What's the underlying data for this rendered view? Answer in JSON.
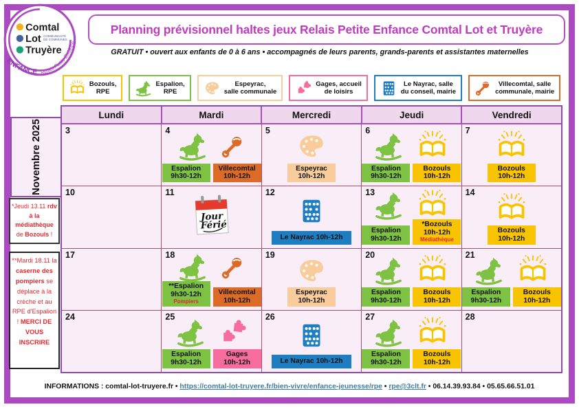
{
  "logo": {
    "line1": "Comtal",
    "line2": "Lot",
    "line3": "Truyère",
    "sub1": "COMMUNAUTÉ",
    "sub2": "DE COMMUNES",
    "arc_bottom": "ENFANCE ⋯",
    "arc_right": "Relais Petite Enfance"
  },
  "header": {
    "title": "Planning prévisionnel haltes jeux Relais Petite Enfance Comtal Lot et Truyère",
    "subtitle": "GRATUIT •  ouvert aux enfants de 0 à 6 ans •  accompagnés de leurs parents, grands-parents et assistantes maternelles"
  },
  "colors": {
    "green": "#7DC242",
    "yellow": "#F8C301",
    "peach": "#F8CC9B",
    "orange": "#DD6B28",
    "pink": "#F76C9F",
    "blue": "#1F7EC2",
    "frame_purple": "#AC4BC1",
    "title_magenta": "#BE3DBE",
    "note_red": "#E8262B",
    "link_teal": "#3D7E9E",
    "cell_bg": "#F9EDF7",
    "header_bg": "#EFD8ED"
  },
  "legend": [
    {
      "icon": "open-book-icon",
      "color_key": "yellow",
      "lines": [
        "Bozouls,",
        "RPE"
      ]
    },
    {
      "icon": "rocking-horse-icon",
      "color_key": "green",
      "lines": [
        "Espalion,",
        "RPE"
      ]
    },
    {
      "icon": "palette-icon",
      "color_key": "peach",
      "lines": [
        "Espeyrac,",
        "salle communale"
      ]
    },
    {
      "icon": "puzzle-icon",
      "color_key": "pink",
      "lines": [
        "Gages, accueil",
        "de loisirs"
      ]
    },
    {
      "icon": "abacus-icon",
      "color_key": "blue",
      "lines": [
        "Le Nayrac, salle",
        "du conseil, mairie"
      ]
    },
    {
      "icon": "rattle-icon",
      "color_key": "orange",
      "lines": [
        "Villecomtal, salle",
        "communale, mairie"
      ]
    }
  ],
  "calendar": {
    "month_label": "Novembre 2025",
    "day_headers": [
      "Lundi",
      "Mardi",
      "Mercredi",
      "Jeudi",
      "Vendredi"
    ],
    "weeks": [
      [
        {
          "day": "3",
          "events": []
        },
        {
          "day": "4",
          "events": [
            {
              "icon": "rocking-horse-icon",
              "title": "Espalion",
              "time": "9h30-12h",
              "color_key": "green"
            },
            {
              "icon": "rattle-icon",
              "title": "Villecomtal",
              "time": "10h-12h",
              "color_key": "orange"
            }
          ]
        },
        {
          "day": "5",
          "events": [
            {
              "icon": "palette-icon",
              "title": "Espeyrac",
              "time": "10h-12h",
              "color_key": "peach"
            }
          ]
        },
        {
          "day": "6",
          "events": [
            {
              "icon": "rocking-horse-icon",
              "title": "Espalion",
              "time": "9h30-12h",
              "color_key": "green"
            },
            {
              "icon": "open-book-icon",
              "title": "Bozouls",
              "time": "10h-12h",
              "color_key": "yellow"
            }
          ]
        },
        {
          "day": "7",
          "events": [
            {
              "icon": "open-book-icon",
              "title": "Bozouls",
              "time": "10h-12h",
              "color_key": "yellow"
            }
          ]
        }
      ],
      [
        {
          "day": "10",
          "events": []
        },
        {
          "day": "11",
          "jour_ferie": true,
          "events": []
        },
        {
          "day": "12",
          "events": [
            {
              "icon": "abacus-icon",
              "title": "Le Nayrac 10h-12h",
              "time": "",
              "color_key": "blue",
              "wide": true
            }
          ]
        },
        {
          "day": "13",
          "events": [
            {
              "icon": "rocking-horse-icon",
              "title": "Espalion",
              "time": "9h30-12h",
              "color_key": "green"
            },
            {
              "icon": "open-book-icon",
              "title": "*Bozouls",
              "time": "10h-12h",
              "note": "Médiathèque",
              "color_key": "yellow"
            }
          ]
        },
        {
          "day": "14",
          "events": [
            {
              "icon": "open-book-icon",
              "title": "Bozouls",
              "time": "10h-12h",
              "color_key": "yellow"
            }
          ]
        }
      ],
      [
        {
          "day": "17",
          "events": []
        },
        {
          "day": "18",
          "events": [
            {
              "icon": "rocking-horse-icon",
              "title": "**Espalion",
              "time": "9h30-12h",
              "note": "Pompiers",
              "color_key": "green"
            },
            {
              "icon": "rattle-icon",
              "title": "Villecomtal",
              "time": "10h-12h",
              "color_key": "orange"
            }
          ]
        },
        {
          "day": "19",
          "events": [
            {
              "icon": "palette-icon",
              "title": "Espeyrac",
              "time": "10h-12h",
              "color_key": "peach"
            }
          ]
        },
        {
          "day": "20",
          "events": [
            {
              "icon": "rocking-horse-icon",
              "title": "Espalion",
              "time": "9h30-12h",
              "color_key": "green"
            },
            {
              "icon": "open-book-icon",
              "title": "Bozouls",
              "time": "10h-12h",
              "color_key": "yellow"
            }
          ]
        },
        {
          "day": "21",
          "events": [
            {
              "icon": "rocking-horse-icon",
              "title": "Espalion",
              "time": "9h30-12h",
              "color_key": "green"
            },
            {
              "icon": "open-book-icon",
              "title": "Bozouls",
              "time": "10h-12h",
              "color_key": "yellow"
            }
          ]
        }
      ],
      [
        {
          "day": "24",
          "events": []
        },
        {
          "day": "25",
          "events": [
            {
              "icon": "rocking-horse-icon",
              "title": "Espalion",
              "time": "9h30-12h",
              "color_key": "green"
            },
            {
              "icon": "puzzle-icon",
              "title": "Gages",
              "time": "10h-12h",
              "color_key": "pink"
            }
          ]
        },
        {
          "day": "26",
          "events": [
            {
              "icon": "abacus-icon",
              "title": "Le Nayrac 10h-12h",
              "time": "",
              "color_key": "blue",
              "wide": true
            }
          ]
        },
        {
          "day": "27",
          "events": [
            {
              "icon": "rocking-horse-icon",
              "title": "Espalion",
              "time": "9h30-12h",
              "color_key": "green"
            },
            {
              "icon": "open-book-icon",
              "title": "Bozouls",
              "time": "10h-12h",
              "color_key": "yellow"
            }
          ]
        },
        {
          "day": "28",
          "events": []
        }
      ]
    ]
  },
  "jour_ferie": {
    "line1": "Jour",
    "line2": "Férié"
  },
  "side_notes": [
    {
      "segments": [
        {
          "t": "*Jeudi 13.11 ",
          "b": false
        },
        {
          "t": "rdv à la médiathèque",
          "b": true
        },
        {
          "t": " de ",
          "b": false
        },
        {
          "t": "Bozouls",
          "b": true
        },
        {
          "t": " !",
          "b": false
        }
      ]
    },
    {
      "segments": [
        {
          "t": "**Mardi 18.11 la ",
          "b": false
        },
        {
          "t": "caserne des pompiers",
          "b": true
        },
        {
          "t": " se déplace à la crèche et au RPE d'Espalion ! ",
          "b": false
        },
        {
          "t": "MERCI DE VOUS INSCRIRE",
          "b": true
        }
      ]
    }
  ],
  "footer": {
    "segments": [
      {
        "t": "INFORMATIONS : comtal-lot-truyere.fr • ",
        "link": false
      },
      {
        "t": "https://comtal-lot-truyere.fr/bien-vivre/enfance-jeunesse/rpe",
        "link": true
      },
      {
        "t": " • ",
        "link": false
      },
      {
        "t": "rpe@3clt.fr",
        "link": true
      },
      {
        "t": " • 06.14.39.93.84 • 05.65.66.51.01",
        "link": false
      }
    ]
  }
}
